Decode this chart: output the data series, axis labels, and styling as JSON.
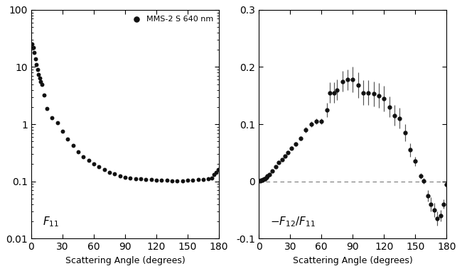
{
  "legend_label": "MMS-2 S 640 nm",
  "xlabel": "Scattering Angle (degrees)",
  "f11_angles": [
    1,
    2,
    3,
    4,
    5,
    6,
    7,
    8,
    9,
    10,
    12,
    15,
    20,
    25,
    30,
    35,
    40,
    45,
    50,
    55,
    60,
    65,
    70,
    75,
    80,
    85,
    90,
    95,
    100,
    105,
    110,
    115,
    120,
    125,
    130,
    135,
    140,
    145,
    150,
    155,
    160,
    165,
    170,
    173,
    175,
    177,
    179
  ],
  "f11_values": [
    25,
    22,
    18,
    14,
    11,
    9,
    7.5,
    6.5,
    5.5,
    5.0,
    3.2,
    1.9,
    1.3,
    1.05,
    0.75,
    0.55,
    0.42,
    0.33,
    0.27,
    0.23,
    0.2,
    0.18,
    0.16,
    0.145,
    0.135,
    0.125,
    0.118,
    0.115,
    0.112,
    0.11,
    0.108,
    0.107,
    0.106,
    0.105,
    0.104,
    0.103,
    0.102,
    0.103,
    0.104,
    0.105,
    0.107,
    0.108,
    0.11,
    0.115,
    0.13,
    0.145,
    0.16
  ],
  "f12_angles": [
    1,
    2,
    3,
    4,
    5,
    6,
    7,
    8,
    10,
    13,
    16,
    19,
    22,
    25,
    28,
    31,
    35,
    40,
    45,
    50,
    55,
    60,
    65,
    68,
    72,
    75,
    80,
    85,
    90,
    95,
    100,
    105,
    110,
    115,
    120,
    125,
    130,
    135,
    140,
    145,
    150,
    155,
    158,
    162,
    165,
    168,
    171,
    174,
    177,
    180
  ],
  "f12_values": [
    0.001,
    0.002,
    0.002,
    0.003,
    0.004,
    0.005,
    0.007,
    0.009,
    0.012,
    0.018,
    0.025,
    0.033,
    0.038,
    0.044,
    0.05,
    0.058,
    0.065,
    0.075,
    0.09,
    0.1,
    0.105,
    0.105,
    0.125,
    0.155,
    0.155,
    0.16,
    0.175,
    0.178,
    0.178,
    0.168,
    0.155,
    0.155,
    0.153,
    0.15,
    0.145,
    0.13,
    0.115,
    0.11,
    0.085,
    0.055,
    0.035,
    0.01,
    0.001,
    -0.025,
    -0.04,
    -0.05,
    -0.065,
    -0.06,
    -0.04,
    -0.005
  ],
  "f12_errors": [
    0.002,
    0.002,
    0.002,
    0.002,
    0.002,
    0.002,
    0.002,
    0.002,
    0.002,
    0.002,
    0.002,
    0.002,
    0.002,
    0.002,
    0.003,
    0.003,
    0.004,
    0.004,
    0.005,
    0.005,
    0.005,
    0.005,
    0.012,
    0.018,
    0.018,
    0.018,
    0.018,
    0.018,
    0.022,
    0.022,
    0.022,
    0.022,
    0.022,
    0.022,
    0.022,
    0.018,
    0.018,
    0.018,
    0.015,
    0.012,
    0.008,
    0.005,
    0.005,
    0.01,
    0.012,
    0.012,
    0.012,
    0.01,
    0.008,
    0.005
  ],
  "left_xlim": [
    0,
    180
  ],
  "left_ylim": [
    0.01,
    100
  ],
  "right_xlim": [
    0,
    180
  ],
  "right_ylim": [
    -0.1,
    0.3
  ],
  "xticks": [
    0,
    30,
    60,
    90,
    120,
    150,
    180
  ],
  "left_yticks": [
    0.01,
    0.1,
    1,
    10,
    100
  ],
  "right_yticks": [
    -0.1,
    0.0,
    0.1,
    0.2,
    0.3
  ],
  "dot_color": "#111111",
  "dot_size": 18,
  "marker_size": 3.5,
  "ebar_color": "#555555",
  "dashed_color": "#777777",
  "background": "#ffffff",
  "spine_color": "#000000"
}
